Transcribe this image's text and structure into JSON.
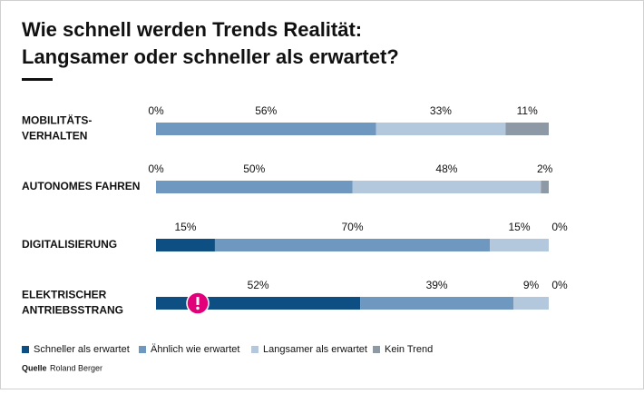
{
  "chart_data": {
    "type": "stacked-bar-horizontal",
    "title": [
      "Wie schnell werden Trends Realität:",
      "Langsamer oder schneller als erwartet?"
    ],
    "categories": [
      [
        "MOBILITÄTS-",
        "VERHALTEN"
      ],
      [
        "AUTONOMES FAHREN"
      ],
      [
        "DIGITALISIERUNG"
      ],
      [
        "ELEKTRISCHER",
        "ANTRIEBSSTRANG"
      ]
    ],
    "series": [
      {
        "name": "Schneller als erwartet",
        "color": "#0d4f82",
        "values": [
          0,
          0,
          15,
          52
        ],
        "value_labels": [
          "0%",
          "0%",
          "15%",
          "52%"
        ]
      },
      {
        "name": "Ähnlich wie erwartet",
        "color": "#6f98c0",
        "values": [
          56,
          50,
          70,
          39
        ],
        "value_labels": [
          "56%",
          "50%",
          "70%",
          "39%"
        ]
      },
      {
        "name": "Langsamer als erwartet",
        "color": "#b3c7dd",
        "values": [
          33,
          48,
          15,
          9
        ],
        "value_labels": [
          "33%",
          "48%",
          "15%",
          "9%"
        ]
      },
      {
        "name": "Kein Trend",
        "color": "#8d99a5",
        "values": [
          11,
          2,
          0,
          0
        ],
        "value_labels": [
          "11%",
          "2%",
          "0%",
          "0%"
        ]
      }
    ],
    "xlim": [
      0,
      100
    ],
    "source": {
      "label": "Quelle",
      "text": "Roland Berger"
    }
  }
}
